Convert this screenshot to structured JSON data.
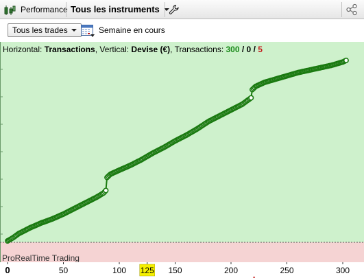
{
  "toolbar": {
    "performance_label": "Performance",
    "instruments_label": "Tous les instruments"
  },
  "filters": {
    "trades_label": "Tous les trades",
    "period_label": "Semaine en cours"
  },
  "info": {
    "horizontal_label": "Horizontal: ",
    "horizontal_value": "Transactions",
    "vertical_label": ", Vertical: ",
    "vertical_value": "Devise (€)",
    "transactions_label": ", Transactions: ",
    "count_total": "300",
    "slash1": " / ",
    "count_neutral": "0",
    "slash2": " / ",
    "count_losing": "5"
  },
  "watermark": "ProRealTime Trading",
  "colors": {
    "profit_zone": "#cef1cc",
    "loss_zone": "#f5d3d3",
    "line": "#1a7a10",
    "total_green": "#1a8a1a",
    "losing_red": "#c41a1a",
    "highlight": "#f6f000"
  },
  "icons": {
    "app": "bar-chart-icon",
    "settings": "wrench-icon",
    "share": "share-icon",
    "calendar": "calendar-icon"
  },
  "chart_data": {
    "type": "line",
    "xlabel": "",
    "ylabel": "",
    "xlim": [
      -2,
      312
    ],
    "x_ticks": [
      "0",
      "50",
      "100",
      "125",
      "150",
      "200",
      "250",
      "300"
    ],
    "highlighted_tick": "125",
    "series": [
      {
        "x": [
          0,
          5,
          10,
          20,
          30,
          40,
          50,
          60,
          70,
          80,
          86,
          88,
          89,
          92,
          100,
          110,
          120,
          130,
          140,
          150,
          160,
          170,
          180,
          190,
          200,
          210,
          215,
          218,
          219,
          222,
          230,
          240,
          250,
          260,
          270,
          280,
          290,
          300,
          303
        ],
        "y": [
          0,
          0.4,
          0.9,
          1.6,
          2.2,
          2.7,
          3.3,
          4.0,
          4.7,
          5.4,
          5.9,
          6.2,
          7.8,
          8.2,
          8.7,
          9.3,
          10.0,
          10.8,
          11.5,
          12.3,
          13.0,
          13.8,
          14.7,
          15.4,
          16.1,
          16.8,
          17.3,
          17.6,
          18.6,
          19.0,
          19.5,
          19.9,
          20.3,
          20.7,
          21.0,
          21.3,
          21.6,
          22.0,
          22.2
        ]
      }
    ]
  }
}
